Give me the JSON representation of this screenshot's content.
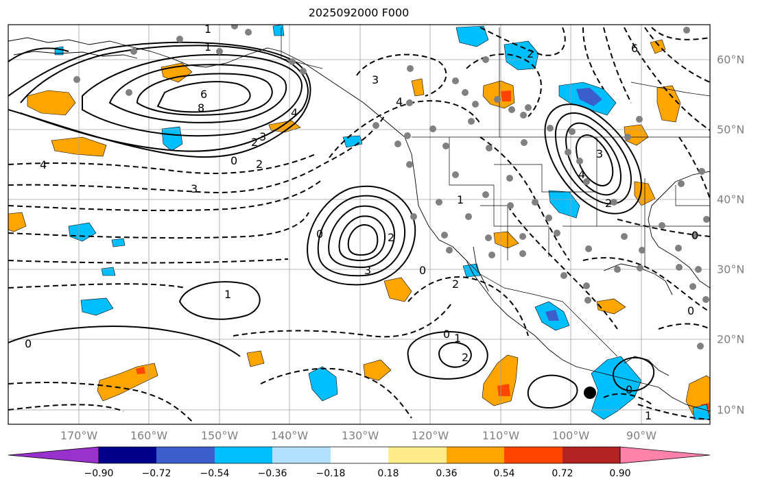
{
  "title": "2025092000 F000",
  "longitude_labels": [
    "170°W",
    "160°W",
    "150°W",
    "140°W",
    "130°W",
    "120°W",
    "110°W",
    "100°W",
    "90°W"
  ],
  "latitude_labels": [
    "60°N",
    "50°N",
    "40°N",
    "30°N",
    "20°N",
    "10°N"
  ],
  "colorbar": {
    "ticks": [
      "−0.90",
      "−0.72",
      "−0.54",
      "−0.36",
      "−0.18",
      "0.18",
      "0.36",
      "0.54",
      "0.72",
      "0.90"
    ],
    "colors": [
      "#9932cc",
      "#00008b",
      "#3a5fcd",
      "#00bfff",
      "#b0e2ff",
      "#ffffff",
      "#ffec8b",
      "#ffa500",
      "#ff4500",
      "#b22222",
      "#ff82ab"
    ]
  },
  "contour_labels": [
    "1",
    "1",
    "6",
    "8",
    "4",
    "2",
    "3",
    "0",
    "2",
    "4",
    "3",
    "3",
    "4",
    "0",
    "1",
    "2",
    "3",
    "1",
    "0",
    "2",
    "0",
    "1",
    "2",
    "6",
    "2",
    "3",
    "4",
    "2",
    "0",
    "0",
    "0",
    "1",
    "0"
  ]
}
